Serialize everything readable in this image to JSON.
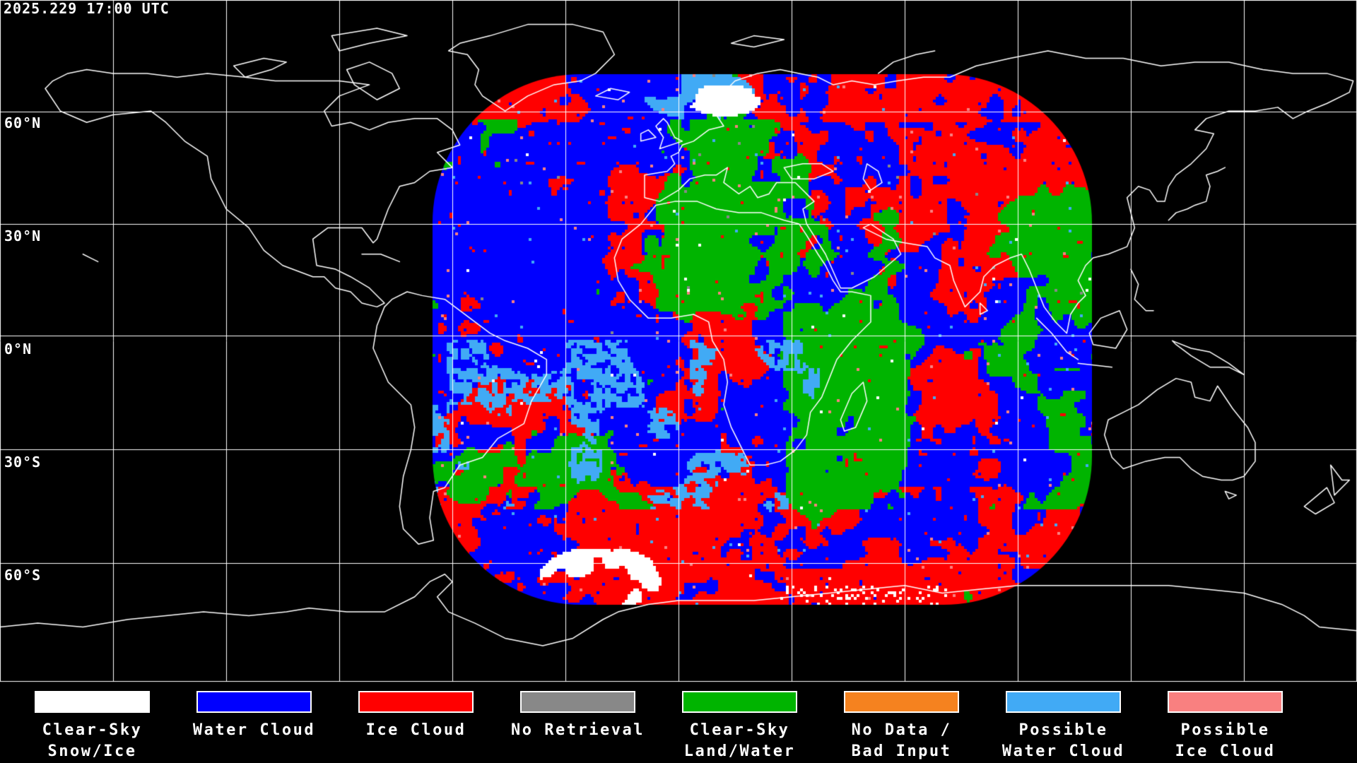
{
  "header": {
    "timestamp": "2025.229 17:00 UTC"
  },
  "map": {
    "latitude_labels": [
      {
        "label": "60°N",
        "lat_deg": 60
      },
      {
        "label": "30°N",
        "lat_deg": 30
      },
      {
        "label": "0°N",
        "lat_deg": 0
      },
      {
        "label": "30°S",
        "lat_deg": -30
      },
      {
        "label": "60°S",
        "lat_deg": -60
      }
    ],
    "graticule": {
      "lon_spacing_deg": 30,
      "lat_spacing_deg": 30,
      "grid_color": "#FFFFFF",
      "coastline_color": "#FFFFFF",
      "background_color": "#000000"
    }
  },
  "legend": {
    "items": [
      {
        "id": "clear-sky-snow-ice",
        "color": "#FFFFFF",
        "line1": "Clear-Sky",
        "line2": "Snow/Ice"
      },
      {
        "id": "water-cloud",
        "color": "#0000FF",
        "line1": "Water Cloud",
        "line2": ""
      },
      {
        "id": "ice-cloud",
        "color": "#FF0000",
        "line1": "Ice Cloud",
        "line2": ""
      },
      {
        "id": "no-retrieval",
        "color": "#888888",
        "line1": "No Retrieval",
        "line2": ""
      },
      {
        "id": "clear-sky-land-water",
        "color": "#00B400",
        "line1": "Clear-Sky",
        "line2": "Land/Water"
      },
      {
        "id": "no-data-bad-input",
        "color": "#F5821F",
        "line1": "No Data /",
        "line2": "Bad Input"
      },
      {
        "id": "possible-water-cloud",
        "color": "#41AAF5",
        "line1": "Possible",
        "line2": "Water Cloud"
      },
      {
        "id": "possible-ice-cloud",
        "color": "#F98080",
        "line1": "Possible",
        "line2": "Ice Cloud"
      }
    ]
  },
  "data_region_colors": {
    "water_cloud": "#0000FF",
    "ice_cloud": "#FF0000",
    "clear_sky_land_water": "#00B400",
    "clear_sky_snow_ice": "#FFFFFF",
    "possible_water_cloud": "#41AAF5",
    "possible_ice_cloud": "#F98080",
    "no_retrieval": "#888888"
  }
}
